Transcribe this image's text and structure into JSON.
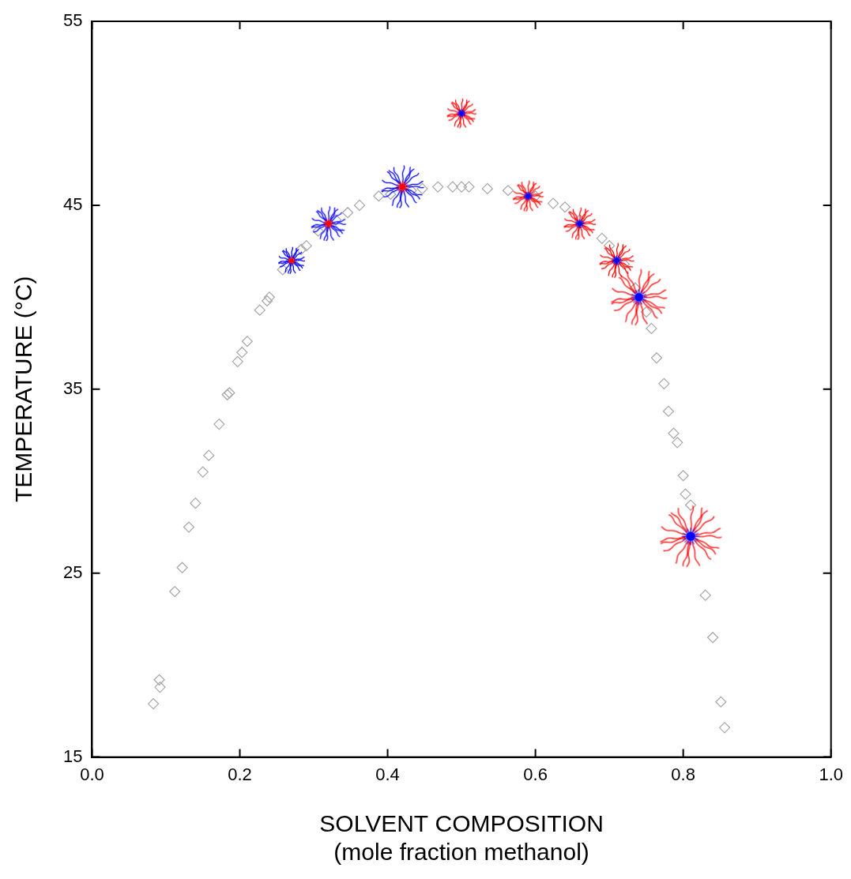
{
  "chart_data": {
    "type": "scatter",
    "x_label": [
      "SOLVENT COMPOSITION",
      "(mole fraction methanol)"
    ],
    "y_label": "TEMPERATURE (°C)",
    "xlim": [
      0,
      1
    ],
    "xticks": [
      {
        "value": 0,
        "label": "0.0"
      },
      0.2,
      0.4,
      0.6,
      0.8,
      {
        "value": 1,
        "label": "1.0"
      }
    ],
    "ylim": [
      15,
      55
    ],
    "yticks": [
      15,
      25,
      35,
      45,
      55
    ],
    "grid": false,
    "series": [
      {
        "color": "#a6a6a6",
        "marker": "diamond",
        "x": [
          0.083,
          0.091,
          0.092,
          0.112,
          0.122,
          0.131,
          0.14,
          0.15,
          0.158,
          0.172,
          0.183,
          0.186,
          0.197,
          0.203,
          0.21,
          0.227,
          0.237,
          0.24,
          0.258,
          0.27,
          0.283,
          0.29,
          0.306,
          0.33,
          0.346,
          0.362,
          0.388,
          0.404,
          0.432,
          0.447,
          0.468,
          0.488,
          0.5,
          0.51,
          0.535,
          0.563,
          0.6,
          0.624,
          0.64,
          0.66,
          0.69,
          0.7,
          0.72,
          0.735,
          0.75,
          0.757,
          0.764,
          0.774,
          0.78,
          0.787,
          0.792,
          0.8,
          0.803,
          0.81,
          0.83,
          0.84,
          0.851,
          0.856
        ],
        "values": [
          17.9,
          19.2,
          18.8,
          24.0,
          25.3,
          27.5,
          28.8,
          30.5,
          31.4,
          33.1,
          34.7,
          34.8,
          36.5,
          37.0,
          37.6,
          39.3,
          39.8,
          40.0,
          41.5,
          42.0,
          42.6,
          42.8,
          43.6,
          44.2,
          44.6,
          45.0,
          45.5,
          45.6,
          45.8,
          45.9,
          46.0,
          46.0,
          46.0,
          46.0,
          45.9,
          45.8,
          45.5,
          45.1,
          44.9,
          44.2,
          43.2,
          42.8,
          41.8,
          40.5,
          39.2,
          38.3,
          36.7,
          35.3,
          33.8,
          32.6,
          32.1,
          30.3,
          29.3,
          28.7,
          23.8,
          21.5,
          18.0,
          16.6
        ]
      },
      {
        "color": "#0000ff",
        "marker": "micelle",
        "x": [
          0.27,
          0.32,
          0.42
        ],
        "values": [
          42.0,
          44.0,
          46.0
        ],
        "size": [
          1.0,
          1.3,
          1.6
        ]
      },
      {
        "color": "#ff0000",
        "marker": "micelle",
        "x": [
          0.5,
          0.59,
          0.66,
          0.71,
          0.74,
          0.81
        ],
        "values": [
          50.0,
          45.5,
          44.0,
          42.0,
          40.0,
          27.0
        ],
        "size": [
          1.1,
          1.15,
          1.2,
          1.3,
          2.1,
          2.3
        ]
      }
    ]
  }
}
